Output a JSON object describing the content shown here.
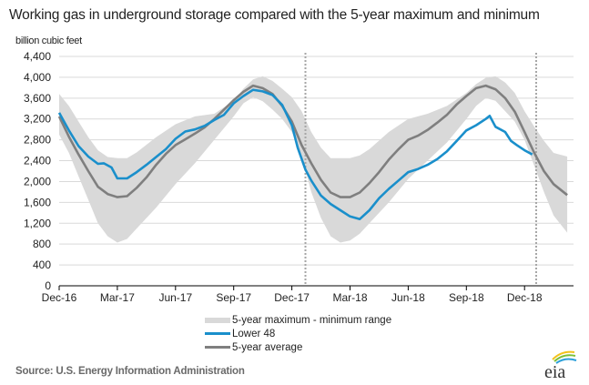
{
  "title": "Working gas in underground  storage compared with the 5-year maximum and minimum",
  "unit_label": "billion cubic feet",
  "source": "Source:  U.S. Energy Information Administration",
  "logo_text": "eia",
  "colors": {
    "band": "#d9d9d9",
    "lower48": "#1a8fcb",
    "average": "#7f7f7f",
    "grid": "#d9d9d9",
    "divider": "#a6a6a6"
  },
  "legend": [
    {
      "label": "5-year maximum - minimum range",
      "kind": "band"
    },
    {
      "label": "Lower 48",
      "kind": "blue"
    },
    {
      "label": "5-year average",
      "kind": "gray"
    }
  ],
  "chart_data": {
    "type": "area",
    "title": "Working gas in underground  storage compared with the 5-year maximum and minimum",
    "xlabel": "",
    "ylabel": "billion cubic feet",
    "ylim": [
      0,
      4400
    ],
    "yticks": [
      0,
      400,
      800,
      1200,
      1600,
      2000,
      2400,
      2800,
      3200,
      3600,
      4000,
      4400
    ],
    "ytick_labels": [
      "0",
      "400",
      "800",
      "1,200",
      "1,600",
      "2,000",
      "2,400",
      "2,800",
      "3,200",
      "3,600",
      "4,000",
      "4,400"
    ],
    "x_unit": "months since Dec-16",
    "xlim": [
      0,
      26.2
    ],
    "xticks": [
      0,
      3,
      6,
      9,
      12,
      15,
      18,
      21,
      24
    ],
    "xtick_labels": [
      "Dec-16",
      "Mar-17",
      "Jun-17",
      "Sep-17",
      "Dec-17",
      "Mar-18",
      "Jun-18",
      "Sep-18",
      "Dec-18"
    ],
    "grid": true,
    "legend_position": "bottom",
    "vertical_dividers": [
      12.7,
      24.6
    ],
    "band": {
      "name": "5-year maximum - minimum range",
      "x": [
        0,
        0.5,
        1,
        1.5,
        2,
        2.5,
        3,
        3.5,
        4,
        5,
        6,
        7,
        8,
        9,
        9.5,
        10,
        10.5,
        11,
        11.5,
        12,
        12.5,
        13,
        13.5,
        14,
        14.5,
        15,
        15.5,
        16,
        17,
        18,
        19,
        20,
        21,
        21.5,
        22,
        22.5,
        23,
        23.5,
        24,
        24.5,
        25,
        25.5,
        26.2
      ],
      "max": [
        3680,
        3450,
        3150,
        2850,
        2600,
        2470,
        2450,
        2450,
        2560,
        2850,
        3100,
        3250,
        3300,
        3550,
        3780,
        3960,
        4020,
        3930,
        3780,
        3620,
        3350,
        2950,
        2650,
        2450,
        2450,
        2450,
        2500,
        2620,
        2950,
        3200,
        3300,
        3450,
        3700,
        3870,
        3990,
        4020,
        3900,
        3700,
        3350,
        3050,
        2780,
        2550,
        2480
      ],
      "min": [
        2900,
        2550,
        2100,
        1650,
        1200,
        950,
        830,
        900,
        1100,
        1500,
        1950,
        2350,
        2800,
        3250,
        3500,
        3620,
        3540,
        3380,
        3200,
        2950,
        2500,
        1800,
        1300,
        950,
        830,
        870,
        1000,
        1200,
        1600,
        2050,
        2400,
        2750,
        3200,
        3450,
        3600,
        3550,
        3350,
        3150,
        2800,
        2300,
        1800,
        1350,
        1020
      ]
    },
    "series": [
      {
        "name": "Lower 48",
        "x": [
          0,
          0.5,
          1,
          1.5,
          2,
          2.3,
          2.7,
          3,
          3.5,
          4,
          4.5,
          5,
          5.5,
          6,
          6.5,
          7,
          7.5,
          8,
          8.5,
          9,
          9.5,
          10,
          10.5,
          11,
          11.5,
          12,
          12.3,
          12.7,
          13,
          13.5,
          14,
          14.5,
          15,
          15.5,
          16,
          16.5,
          17,
          17.5,
          18,
          18.5,
          19,
          19.5,
          20,
          20.5,
          21,
          21.5,
          22,
          22.2,
          22.5,
          23,
          23.3,
          23.6,
          24,
          24.4
        ],
        "values": [
          3320,
          2980,
          2680,
          2480,
          2340,
          2350,
          2270,
          2060,
          2060,
          2180,
          2320,
          2470,
          2620,
          2820,
          2960,
          3000,
          3070,
          3180,
          3280,
          3500,
          3640,
          3760,
          3730,
          3660,
          3470,
          3080,
          2650,
          2230,
          2020,
          1730,
          1570,
          1450,
          1330,
          1280,
          1450,
          1680,
          1860,
          2020,
          2180,
          2240,
          2320,
          2430,
          2580,
          2780,
          2980,
          3080,
          3200,
          3260,
          3050,
          2950,
          2780,
          2700,
          2600,
          2520
        ]
      },
      {
        "name": "5-year average",
        "x": [
          0,
          0.5,
          1,
          1.5,
          2,
          2.5,
          3,
          3.5,
          4,
          4.5,
          5,
          5.5,
          6,
          6.5,
          7,
          7.5,
          8,
          8.5,
          9,
          9.5,
          10,
          10.5,
          11,
          11.5,
          12,
          12.5,
          13,
          13.5,
          14,
          14.5,
          15,
          15.5,
          16,
          16.5,
          17,
          17.5,
          18,
          18.5,
          19,
          19.5,
          20,
          20.5,
          21,
          21.5,
          22,
          22.5,
          23,
          23.5,
          24,
          24.5,
          25,
          25.5,
          26.2
        ],
        "values": [
          3250,
          2860,
          2520,
          2200,
          1900,
          1760,
          1700,
          1720,
          1880,
          2080,
          2320,
          2530,
          2700,
          2810,
          2920,
          3040,
          3200,
          3380,
          3560,
          3720,
          3840,
          3790,
          3680,
          3450,
          3150,
          2700,
          2350,
          2030,
          1790,
          1700,
          1700,
          1790,
          1970,
          2180,
          2420,
          2620,
          2800,
          2880,
          2990,
          3130,
          3280,
          3480,
          3640,
          3790,
          3840,
          3770,
          3600,
          3340,
          2950,
          2550,
          2200,
          1950,
          1740
        ]
      }
    ]
  }
}
